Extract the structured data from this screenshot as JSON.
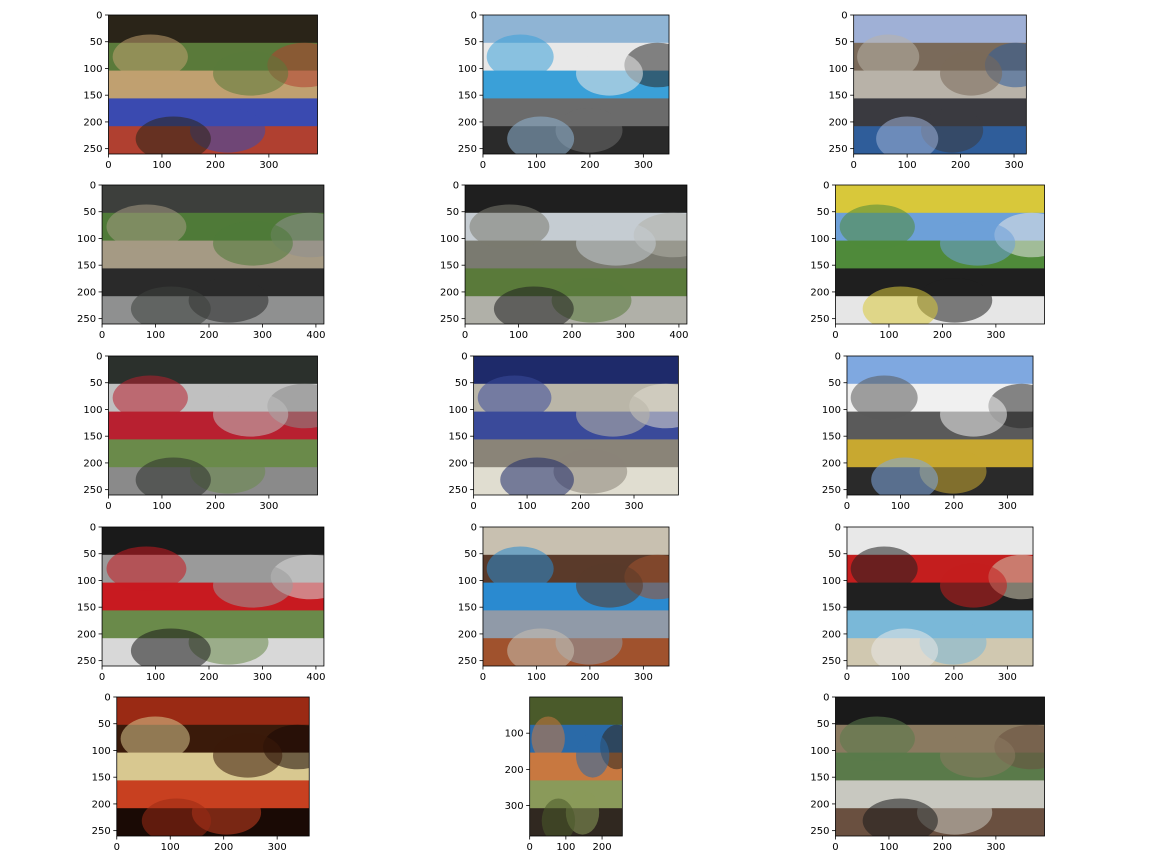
{
  "chart_data": {
    "type": "image_grid",
    "rows": 5,
    "cols": 3,
    "panels": [
      {
        "image": "outdoor-dinner-party-with-man-holding-microphone",
        "width": 391,
        "height": 260,
        "xticks": [
          "0",
          "100",
          "200",
          "300"
        ],
        "yticks": [
          "0",
          "50",
          "100",
          "150",
          "200",
          "250"
        ],
        "palette": [
          "#2a2418",
          "#5a7a3a",
          "#c0a070",
          "#3a4ab0",
          "#b04030"
        ]
      },
      {
        "image": "dolphin-show-pool-stadium-by-ocean",
        "width": 348,
        "height": 260,
        "xticks": [
          "0",
          "100",
          "200",
          "300"
        ],
        "yticks": [
          "0",
          "50",
          "100",
          "150",
          "200",
          "250"
        ],
        "palette": [
          "#8fb4d4",
          "#e8e8e8",
          "#3aa0d8",
          "#6b6b6b",
          "#2a2a2a"
        ]
      },
      {
        "image": "city-street-with-pedestrians-and-parking-meter",
        "width": 323,
        "height": 260,
        "xticks": [
          "0",
          "100",
          "200",
          "300"
        ],
        "yticks": [
          "0",
          "50",
          "100",
          "150",
          "200",
          "250"
        ],
        "palette": [
          "#9fb0d6",
          "#7a6a5a",
          "#b8b2a8",
          "#3a3a40",
          "#2f5d9a"
        ]
      },
      {
        "image": "vintage-convertible-car-gray-on-lawn",
        "width": 415,
        "height": 260,
        "xticks": [
          "0",
          "100",
          "200",
          "300",
          "400"
        ],
        "yticks": [
          "0",
          "50",
          "100",
          "150",
          "200",
          "250"
        ],
        "palette": [
          "#3d3f3c",
          "#4f7a38",
          "#a59a84",
          "#2a2a2a",
          "#8f9090"
        ]
      },
      {
        "image": "vintage-black-and-silver-sedan-at-car-show",
        "width": 415,
        "height": 260,
        "xticks": [
          "0",
          "100",
          "200",
          "300",
          "400"
        ],
        "yticks": [
          "0",
          "50",
          "100",
          "150",
          "200",
          "250"
        ],
        "palette": [
          "#1f1f1f",
          "#c5ccd2",
          "#7a7a70",
          "#5a7a3a",
          "#b0b0a8"
        ]
      },
      {
        "image": "yellow-muscle-car-with-hood-open",
        "width": 391,
        "height": 260,
        "xticks": [
          "0",
          "100",
          "200",
          "300"
        ],
        "yticks": [
          "0",
          "50",
          "100",
          "150",
          "200",
          "250"
        ],
        "palette": [
          "#d8c83a",
          "#6da0d8",
          "#4f8a3a",
          "#1f1f1f",
          "#e6e6e6"
        ]
      },
      {
        "image": "vintage-black-coupe-with-red-car-behind",
        "width": 391,
        "height": 260,
        "xticks": [
          "0",
          "100",
          "200",
          "300"
        ],
        "yticks": [
          "0",
          "50",
          "100",
          "150",
          "200",
          "250"
        ],
        "palette": [
          "#2b302c",
          "#c0c0c0",
          "#b82030",
          "#6a8a4a",
          "#8a8a8a"
        ]
      },
      {
        "image": "crumpled-silver-metal-on-blue-fabric",
        "width": 383,
        "height": 260,
        "xticks": [
          "0",
          "100",
          "200",
          "300"
        ],
        "yticks": [
          "0",
          "50",
          "100",
          "150",
          "200",
          "250"
        ],
        "palette": [
          "#1e2a6a",
          "#bab6a8",
          "#3a4a9a",
          "#8a8478",
          "#e0ddd0"
        ]
      },
      {
        "image": "street-protest-with-signs-and-traffic-light",
        "width": 348,
        "height": 260,
        "xticks": [
          "0",
          "100",
          "200",
          "300"
        ],
        "yticks": [
          "0",
          "50",
          "100",
          "150",
          "200",
          "250"
        ],
        "palette": [
          "#7fa8e0",
          "#f0f0f0",
          "#5a5a5a",
          "#c8a830",
          "#2a2a2a"
        ]
      },
      {
        "image": "black-roadster-with-red-car-at-show",
        "width": 415,
        "height": 260,
        "xticks": [
          "0",
          "100",
          "200",
          "300",
          "400"
        ],
        "yticks": [
          "0",
          "50",
          "100",
          "150",
          "200",
          "250"
        ],
        "palette": [
          "#1a1a1a",
          "#9a9a9a",
          "#c81a20",
          "#6a8a4a",
          "#d8d8d8"
        ]
      },
      {
        "image": "family-portrait-woman-child-and-young-man",
        "width": 348,
        "height": 260,
        "xticks": [
          "0",
          "100",
          "200",
          "300"
        ],
        "yticks": [
          "0",
          "50",
          "100",
          "150",
          "200",
          "250"
        ],
        "palette": [
          "#c8c0b0",
          "#5a3a2a",
          "#2a8ad0",
          "#909aa8",
          "#a0522d"
        ]
      },
      {
        "image": "skull-mural-with-red-lips",
        "width": 348,
        "height": 260,
        "xticks": [
          "0",
          "100",
          "200",
          "300"
        ],
        "yticks": [
          "0",
          "50",
          "100",
          "150",
          "200",
          "250"
        ],
        "palette": [
          "#e8e8e8",
          "#c41e1e",
          "#202020",
          "#7ab8d8",
          "#d0c8b0"
        ]
      },
      {
        "image": "hand-artwork-with-words-on-red-background",
        "width": 360,
        "height": 260,
        "xticks": [
          "0",
          "100",
          "200",
          "300"
        ],
        "yticks": [
          "0",
          "50",
          "100",
          "150",
          "200",
          "250"
        ],
        "palette": [
          "#9a2a14",
          "#3a1a0a",
          "#d8c890",
          "#c84020",
          "#1a0a05"
        ]
      },
      {
        "image": "kingfisher-bird-on-branch",
        "width": 256,
        "height": 384,
        "xticks": [
          "0",
          "100",
          "200"
        ],
        "yticks": [
          "100",
          "200",
          "300"
        ],
        "palette": [
          "#4a5a2a",
          "#2a6aa8",
          "#c87840",
          "#8a9a5a",
          "#302820"
        ]
      },
      {
        "image": "vintage-black-citroen-car-by-wooden-building",
        "width": 391,
        "height": 260,
        "xticks": [
          "0",
          "100",
          "200",
          "300"
        ],
        "yticks": [
          "0",
          "50",
          "100",
          "150",
          "200",
          "250"
        ],
        "palette": [
          "#1a1a1a",
          "#8a7a60",
          "#5a7a4a",
          "#c8c8c0",
          "#6a5040"
        ]
      }
    ]
  }
}
